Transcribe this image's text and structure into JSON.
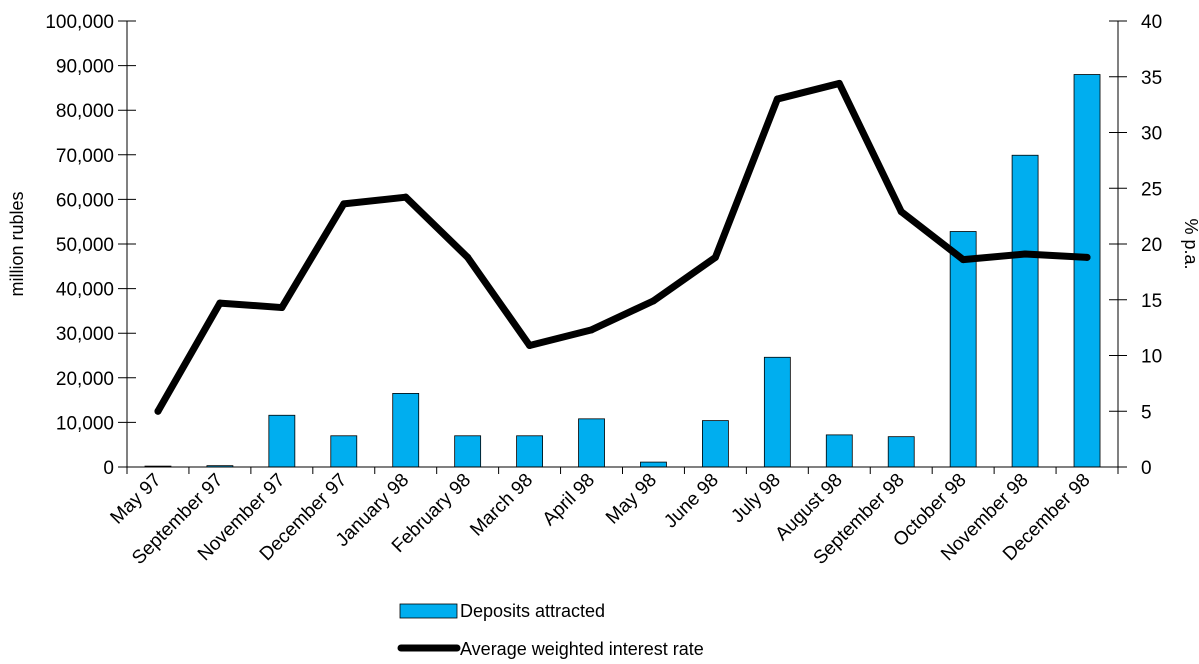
{
  "chart_data": {
    "type": "bar",
    "categories": [
      "May 97",
      "September 97",
      "November 97",
      "December 97",
      "January 98",
      "February 98",
      "March 98",
      "April 98",
      "May 98",
      "June 98",
      "July 98",
      "August 98",
      "September 98",
      "October 98",
      "November 98",
      "December 98"
    ],
    "series": [
      {
        "name": "Deposits attracted",
        "type": "bar",
        "axis": "left",
        "color": "#00aeef",
        "values": [
          200,
          300,
          11600,
          7000,
          16500,
          7000,
          7000,
          10800,
          1100,
          10400,
          24600,
          7200,
          6800,
          52800,
          69900,
          88000
        ]
      },
      {
        "name": "Average weighted interest rate",
        "type": "line",
        "axis": "right",
        "color": "#000000",
        "values": [
          5.0,
          14.7,
          14.3,
          23.6,
          24.2,
          18.8,
          10.9,
          12.3,
          14.9,
          18.8,
          33.0,
          34.4,
          22.9,
          18.6,
          19.1,
          18.8
        ]
      }
    ],
    "ylabel_left": "million rubles",
    "ylabel_right": "% p.a.",
    "ylim_left": [
      0,
      100000
    ],
    "ylim_right": [
      0,
      40
    ],
    "yticks_left": [
      "0",
      "10,000",
      "20,000",
      "30,000",
      "40,000",
      "50,000",
      "60,000",
      "70,000",
      "80,000",
      "90,000",
      "100,000"
    ],
    "yticks_right": [
      "0",
      "5",
      "10",
      "15",
      "20",
      "25",
      "30",
      "35",
      "40"
    ],
    "grid": false,
    "legend_position": "bottom"
  }
}
